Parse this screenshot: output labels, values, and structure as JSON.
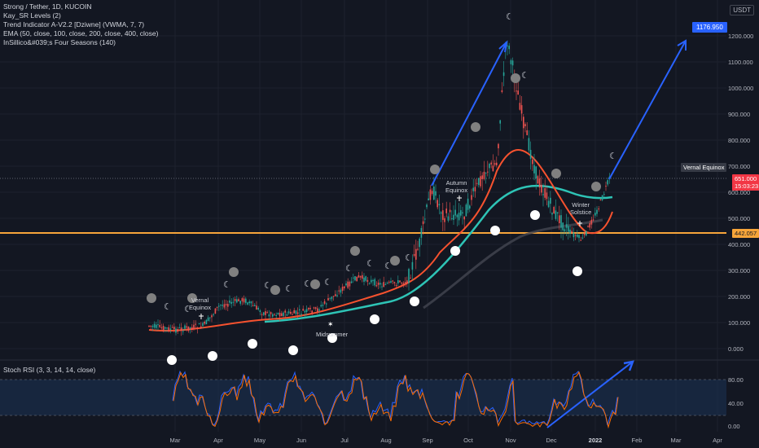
{
  "legend": {
    "symbol": "Strong / Tether, 1D, KUCOIN",
    "line2": "Kay_SR Levels (2)",
    "line3": "Trend Indicator A-V2.2 [Dziwne] (VWMA, 7, 7)",
    "line4": "EMA (50, close, 100, close, 200, close, 400, close)",
    "line5": "InSillico&#039;s Four Seasons (140)"
  },
  "rsi_legend": "Stoch RSI (3, 3, 14, 14, close)",
  "currency": "USDT",
  "price_axis": [
    "1200.000",
    "1100.000",
    "1000.000",
    "900.000",
    "800.000",
    "700.000",
    "600.000",
    "500.000",
    "400.000",
    "300.000",
    "200.000",
    "100.000",
    "0.000"
  ],
  "rsi_axis": [
    "80.00",
    "40.00",
    "0.00"
  ],
  "time_axis": [
    "Mar",
    "Apr",
    "May",
    "Jun",
    "Jul",
    "Aug",
    "Sep",
    "Oct",
    "Nov",
    "Dec",
    "2022",
    "Feb",
    "Mar",
    "Apr"
  ],
  "tags": {
    "target": "1176.950",
    "vernal_label": "Vernal Equinox",
    "price_current": "651.000",
    "countdown": "15:03:23",
    "support": "442.057"
  },
  "notes": {
    "vernal_equinox": "Vernal\nEquinox",
    "midsummer": "Midsummer",
    "autumn_equinox": "Autumn\nEquinox",
    "winter_solstice": "Winter\nSolstice"
  },
  "colors": {
    "background": "#131722",
    "support_line": "#f7a53a",
    "arrow": "#2962ff",
    "ema50": "#f7522f",
    "ema100": "#2ec4b6",
    "ema200": "#555a64",
    "rsi_k": "#2962ff",
    "rsi_d": "#ff6d00",
    "price_tag": "#f23645"
  }
}
